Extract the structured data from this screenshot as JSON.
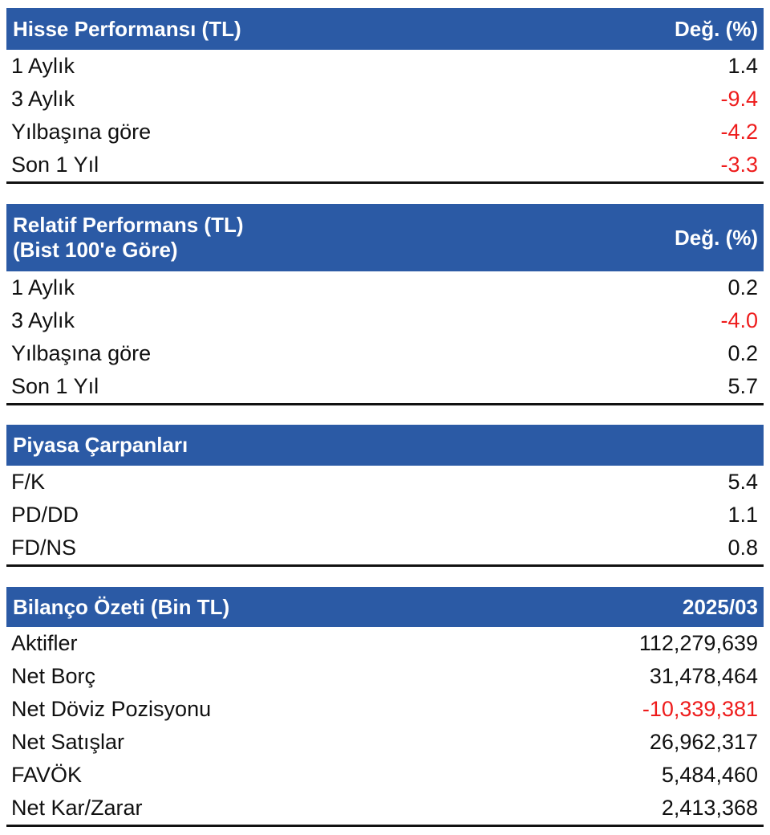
{
  "colors": {
    "header_bg": "#2b5aa5",
    "header_text": "#ffffff",
    "negative": "#ee1c1c",
    "text": "#111111"
  },
  "hisse": {
    "title": "Hisse Performansı (TL)",
    "col": "Değ. (%)",
    "rows": [
      {
        "label": "1 Aylık",
        "value": "1.4",
        "negative": false
      },
      {
        "label": "3 Aylık",
        "value": "-9.4",
        "negative": true
      },
      {
        "label": "Yılbaşına göre",
        "value": "-4.2",
        "negative": true
      },
      {
        "label": "Son 1 Yıl",
        "value": "-3.3",
        "negative": true
      }
    ]
  },
  "relatif": {
    "title_line1": "Relatif Performans (TL)",
    "title_line2": "(Bist 100'e Göre)",
    "col": "Değ. (%)",
    "rows": [
      {
        "label": "1 Aylık",
        "value": "0.2",
        "negative": false
      },
      {
        "label": "3 Aylık",
        "value": "-4.0",
        "negative": true
      },
      {
        "label": "Yılbaşına göre",
        "value": "0.2",
        "negative": false
      },
      {
        "label": "Son 1 Yıl",
        "value": "5.7",
        "negative": false
      }
    ]
  },
  "piyasa": {
    "title": "Piyasa Çarpanları",
    "rows": [
      {
        "label": "F/K",
        "value": "5.4",
        "negative": false
      },
      {
        "label": "PD/DD",
        "value": "1.1",
        "negative": false
      },
      {
        "label": "FD/NS",
        "value": "0.8",
        "negative": false
      }
    ]
  },
  "bilanco": {
    "title": "Bilanço Özeti (Bin TL)",
    "col": "2025/03",
    "rows": [
      {
        "label": "Aktifler",
        "value": "112,279,639",
        "negative": false
      },
      {
        "label": "Net Borç",
        "value": "31,478,464",
        "negative": false
      },
      {
        "label": "Net Döviz Pozisyonu",
        "value": "-10,339,381",
        "negative": true
      },
      {
        "label": "Net Satışlar",
        "value": "26,962,317",
        "negative": false
      },
      {
        "label": "FAVÖK",
        "value": "5,484,460",
        "negative": false
      },
      {
        "label": "Net Kar/Zarar",
        "value": "2,413,368",
        "negative": false
      }
    ]
  }
}
